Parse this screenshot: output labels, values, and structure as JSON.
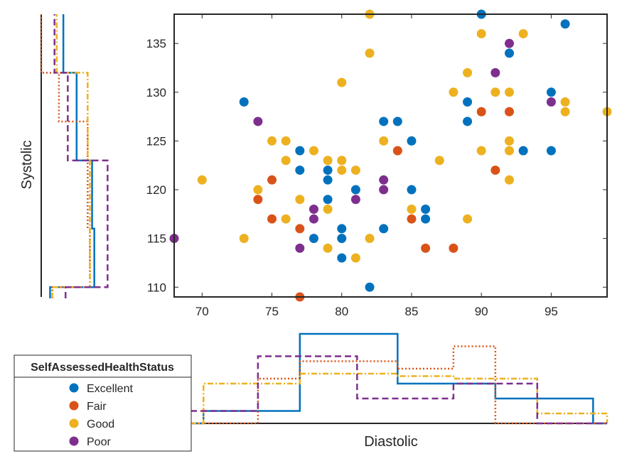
{
  "chart_data": {
    "type": "scatter",
    "xlabel": "Diastolic",
    "ylabel": "Systolic",
    "xlim": [
      68,
      99
    ],
    "ylim": [
      109,
      138
    ],
    "x_ticks": [
      70,
      75,
      80,
      85,
      90,
      95
    ],
    "y_ticks": [
      110,
      115,
      120,
      125,
      130,
      135
    ],
    "grid": false,
    "legend": {
      "title": "SelfAssessedHealthStatus",
      "position": "bottom-left"
    },
    "series": [
      {
        "name": "Excellent",
        "color": "#0072BD",
        "line_style": "solid",
        "points": [
          [
            73,
            129
          ],
          [
            77,
            124
          ],
          [
            77,
            122
          ],
          [
            78,
            115
          ],
          [
            79,
            122
          ],
          [
            79,
            121
          ],
          [
            79,
            119
          ],
          [
            80,
            116
          ],
          [
            80,
            115
          ],
          [
            80,
            113
          ],
          [
            81,
            120
          ],
          [
            82,
            110
          ],
          [
            83,
            127
          ],
          [
            83,
            116
          ],
          [
            84,
            127
          ],
          [
            85,
            125
          ],
          [
            85,
            120
          ],
          [
            86,
            118
          ],
          [
            86,
            117
          ],
          [
            89,
            129
          ],
          [
            89,
            127
          ],
          [
            90,
            138
          ],
          [
            92,
            134
          ],
          [
            93,
            124
          ],
          [
            95,
            130
          ],
          [
            95,
            124
          ],
          [
            96,
            137
          ]
        ]
      },
      {
        "name": "Fair",
        "color": "#D95319",
        "line_style": "dotted",
        "points": [
          [
            74,
            119
          ],
          [
            75,
            121
          ],
          [
            75,
            117
          ],
          [
            77,
            116
          ],
          [
            77,
            109
          ],
          [
            84,
            124
          ],
          [
            85,
            117
          ],
          [
            86,
            114
          ],
          [
            88,
            114
          ],
          [
            90,
            128
          ],
          [
            91,
            122
          ],
          [
            92,
            128
          ]
        ]
      },
      {
        "name": "Good",
        "color": "#EDB120",
        "line_style": "dashdot",
        "points": [
          [
            70,
            121
          ],
          [
            73,
            115
          ],
          [
            74,
            120
          ],
          [
            75,
            125
          ],
          [
            76,
            125
          ],
          [
            76,
            123
          ],
          [
            76,
            117
          ],
          [
            77,
            119
          ],
          [
            78,
            124
          ],
          [
            79,
            123
          ],
          [
            79,
            118
          ],
          [
            79,
            114
          ],
          [
            80,
            131
          ],
          [
            80,
            123
          ],
          [
            80,
            122
          ],
          [
            81,
            122
          ],
          [
            81,
            113
          ],
          [
            82,
            138
          ],
          [
            82,
            134
          ],
          [
            82,
            115
          ],
          [
            83,
            125
          ],
          [
            85,
            118
          ],
          [
            87,
            123
          ],
          [
            88,
            130
          ],
          [
            89,
            132
          ],
          [
            89,
            117
          ],
          [
            90,
            136
          ],
          [
            90,
            124
          ],
          [
            91,
            130
          ],
          [
            92,
            130
          ],
          [
            92,
            125
          ],
          [
            92,
            124
          ],
          [
            92,
            121
          ],
          [
            93,
            136
          ],
          [
            96,
            129
          ],
          [
            96,
            128
          ],
          [
            99,
            128
          ]
        ]
      },
      {
        "name": "Poor",
        "color": "#7E2F8E",
        "line_style": "dashed",
        "points": [
          [
            68,
            115
          ],
          [
            74,
            127
          ],
          [
            77,
            114
          ],
          [
            78,
            118
          ],
          [
            78,
            117
          ],
          [
            81,
            119
          ],
          [
            83,
            121
          ],
          [
            83,
            120
          ],
          [
            91,
            132
          ],
          [
            92,
            135
          ],
          [
            95,
            129
          ]
        ]
      }
    ],
    "marginal_histograms": {
      "top_density": 0.36,
      "diastolic": {
        "edges": [
          66.2,
          70.1,
          74.0,
          77.0,
          81.1,
          84.0,
          88.0,
          91.0,
          94.0,
          98.0,
          102.0
        ],
        "Excellent": [
          0,
          0.05,
          0.05,
          0.36,
          0.36,
          0.16,
          0.16,
          0.1,
          0.1,
          0
        ],
        "Fair": [
          0,
          0,
          0.18,
          0.25,
          0.25,
          0.22,
          0.31,
          0,
          0,
          0
        ],
        "Good": [
          0,
          0.16,
          0.16,
          0.2,
          0.2,
          0.19,
          0.18,
          0.18,
          0.04,
          0.04
        ],
        "Poor": [
          0.05,
          0.05,
          0.27,
          0.27,
          0.1,
          0.1,
          0.16,
          0.16,
          0,
          0
        ]
      },
      "systolic": {
        "edges": [
          106.5,
          108.1,
          110.0,
          113.8,
          116.0,
          119.0,
          123.0,
          127.0,
          132.0,
          136.0,
          138.0
        ],
        "Excellent": [
          0.04,
          0.04,
          0.24,
          0.24,
          0.23,
          0.23,
          0.16,
          0.16,
          0.1,
          0.1
        ],
        "Fair": [
          0.05,
          0.05,
          0.22,
          0.22,
          0.21,
          0.21,
          0.21,
          0.08,
          0,
          0
        ],
        "Good": [
          0.05,
          0.05,
          0.22,
          0.22,
          0.22,
          0.22,
          0.21,
          0.21,
          0.07,
          0.07
        ],
        "Poor": [
          0.11,
          0.11,
          0.3,
          0.3,
          0.3,
          0.3,
          0.12,
          0.12,
          0.06,
          0.06
        ]
      }
    }
  }
}
